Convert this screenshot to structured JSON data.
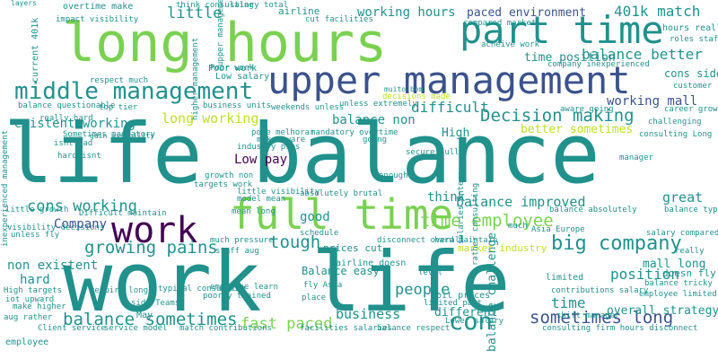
{
  "background": "#ffffff",
  "palette": {
    "teal": "#21918c",
    "green": "#7ad151",
    "navy": "#3b528b",
    "purple": "#440154",
    "blue": "#31688e",
    "sea": "#35b779",
    "lime": "#bddf26",
    "indigo": "#482878"
  },
  "words": [
    {
      "text": "life balance",
      "color": "teal"
    },
    {
      "text": "work life",
      "color": "teal"
    },
    {
      "text": "long hours",
      "color": "green"
    },
    {
      "text": "upper management",
      "color": "navy"
    },
    {
      "text": "part time",
      "color": "teal"
    },
    {
      "text": "full time",
      "color": "green"
    },
    {
      "text": "work",
      "color": "purple"
    },
    {
      "text": "middle management",
      "color": "teal"
    },
    {
      "text": "Decision making",
      "color": "teal"
    },
    {
      "text": "balance sometimes",
      "color": "teal"
    },
    {
      "text": "time employee",
      "color": "green"
    },
    {
      "text": "growing pains",
      "color": "teal"
    },
    {
      "text": "sometimes long",
      "color": "navy"
    },
    {
      "text": "big company",
      "color": "teal"
    },
    {
      "text": "cons working",
      "color": "teal"
    },
    {
      "text": "balance better",
      "color": "teal"
    },
    {
      "text": "working hours",
      "color": "teal"
    },
    {
      "text": "paced environment",
      "color": "navy"
    },
    {
      "text": "401k match",
      "color": "teal"
    },
    {
      "text": "existent working",
      "color": "teal"
    },
    {
      "text": "balance improved",
      "color": "teal"
    },
    {
      "text": "Low pay",
      "color": "purple"
    },
    {
      "text": "tough",
      "color": "teal"
    },
    {
      "text": "fast paced",
      "color": "green"
    },
    {
      "text": "business",
      "color": "teal"
    },
    {
      "text": "con",
      "color": "teal"
    },
    {
      "text": "position",
      "color": "teal"
    },
    {
      "text": "difficult",
      "color": "teal"
    },
    {
      "text": "long working",
      "color": "lime"
    },
    {
      "text": "working mall",
      "color": "navy"
    },
    {
      "text": "balance non",
      "color": "teal"
    },
    {
      "text": "Company",
      "color": "navy"
    },
    {
      "text": "balance challenge",
      "color": "teal"
    },
    {
      "text": "time position",
      "color": "teal"
    },
    {
      "text": "little",
      "color": "teal"
    },
    {
      "text": "non existent",
      "color": "teal"
    },
    {
      "text": "people",
      "color": "teal"
    },
    {
      "text": "good",
      "color": "teal"
    },
    {
      "text": "hard",
      "color": "teal"
    },
    {
      "text": "mall long",
      "color": "teal"
    },
    {
      "text": "overall strategy",
      "color": "teal"
    },
    {
      "text": "Balance easy",
      "color": "teal"
    },
    {
      "text": "cons side",
      "color": "teal"
    },
    {
      "text": "time",
      "color": "teal"
    },
    {
      "text": "different",
      "color": "teal"
    },
    {
      "text": "great",
      "color": "teal"
    },
    {
      "text": "think",
      "color": "teal"
    },
    {
      "text": "High",
      "color": "teal"
    },
    {
      "text": "better sometimes",
      "color": "lime"
    },
    {
      "text": "salary total",
      "color": "teal"
    },
    {
      "text": "airline",
      "color": "teal"
    },
    {
      "text": "Poor work",
      "color": "teal"
    },
    {
      "text": "overtime make",
      "color": "teal"
    },
    {
      "text": "cut facilities",
      "color": "teal"
    },
    {
      "text": "hours really",
      "color": "teal"
    },
    {
      "text": "roles staff",
      "color": "teal"
    },
    {
      "text": "compared market",
      "color": "teal"
    },
    {
      "text": "Low salary",
      "color": "teal"
    },
    {
      "text": "Sometimes mandatory",
      "color": "teal"
    },
    {
      "text": "mandatory overtime",
      "color": "teal"
    },
    {
      "text": "balance questionable",
      "color": "teal"
    },
    {
      "text": "aware going",
      "color": "teal"
    },
    {
      "text": "decisions made",
      "color": "lime"
    },
    {
      "text": "challenging",
      "color": "teal"
    },
    {
      "text": "respect much",
      "color": "teal"
    },
    {
      "text": "top tier",
      "color": "teal"
    },
    {
      "text": "much pressure",
      "color": "teal"
    },
    {
      "text": "staff aug",
      "color": "teal"
    },
    {
      "text": "require long",
      "color": "teal"
    },
    {
      "text": "typical consulting",
      "color": "teal"
    },
    {
      "text": "side Teams",
      "color": "teal"
    },
    {
      "text": "employee learn",
      "color": "teal"
    },
    {
      "text": "Client service",
      "color": "teal"
    },
    {
      "text": "service model",
      "color": "teal"
    },
    {
      "text": "match contributions",
      "color": "teal"
    },
    {
      "text": "facilities salaries",
      "color": "teal"
    },
    {
      "text": "balance respect",
      "color": "teal"
    },
    {
      "text": "consulting firm hours disconnect",
      "color": "teal"
    },
    {
      "text": "Lower salary",
      "color": "teal"
    },
    {
      "text": "unless fly",
      "color": "teal"
    },
    {
      "text": "High targets",
      "color": "teal"
    },
    {
      "text": "Difficult maintain",
      "color": "teal"
    },
    {
      "text": "Asia Europe",
      "color": "teal"
    },
    {
      "text": "salary compared",
      "color": "teal"
    },
    {
      "text": "doesn fly",
      "color": "teal"
    },
    {
      "text": "balance tricky",
      "color": "teal"
    },
    {
      "text": "employee limited",
      "color": "teal"
    },
    {
      "text": "make higher",
      "color": "teal"
    },
    {
      "text": "aug rather",
      "color": "teal"
    },
    {
      "text": "limited part",
      "color": "teal"
    },
    {
      "text": "oil prices",
      "color": "teal"
    },
    {
      "text": "airline doesn",
      "color": "teal"
    },
    {
      "text": "fly Asia",
      "color": "teal"
    },
    {
      "text": "place",
      "color": "teal"
    },
    {
      "text": "poorly trained",
      "color": "teal"
    },
    {
      "text": "May",
      "color": "teal"
    },
    {
      "text": "employee",
      "color": "teal"
    },
    {
      "text": "manager",
      "color": "teal"
    },
    {
      "text": "schedule",
      "color": "teal"
    },
    {
      "text": "contributions salary",
      "color": "teal"
    },
    {
      "text": "mean long",
      "color": "teal"
    },
    {
      "text": "model mean",
      "color": "teal"
    },
    {
      "text": "absolutely brutal",
      "color": "teal"
    },
    {
      "text": "growth non",
      "color": "teal"
    },
    {
      "text": "industry pros",
      "color": "teal"
    },
    {
      "text": "isnt bad",
      "color": "teal"
    },
    {
      "text": "really hard",
      "color": "teal"
    },
    {
      "text": "hard isnt",
      "color": "teal"
    },
    {
      "text": "make aware",
      "color": "teal"
    },
    {
      "text": "little visibility",
      "color": "teal"
    },
    {
      "text": "balance absolutely",
      "color": "teal"
    },
    {
      "text": "consulting Long",
      "color": "teal"
    },
    {
      "text": "shift manager",
      "color": "teal"
    },
    {
      "text": "limited",
      "color": "teal"
    },
    {
      "text": "disconnect overall",
      "color": "teal"
    },
    {
      "text": "hard maintain",
      "color": "teal"
    },
    {
      "text": "market industry",
      "color": "lime"
    },
    {
      "text": "prices cut",
      "color": "teal"
    },
    {
      "text": "Poor work",
      "color": "teal"
    },
    {
      "text": "weekends unless",
      "color": "teal"
    },
    {
      "text": "business units",
      "color": "teal"
    },
    {
      "text": "unless extremely",
      "color": "teal"
    },
    {
      "text": "think consulting",
      "color": "teal"
    },
    {
      "text": "company inexperienced",
      "color": "teal"
    },
    {
      "text": "inexperienced management",
      "color": "teal"
    },
    {
      "text": "acheive work",
      "color": "teal"
    },
    {
      "text": "little growth",
      "color": "teal"
    },
    {
      "text": "current 401k",
      "color": "teal"
    },
    {
      "text": "impact visibility",
      "color": "teal"
    },
    {
      "text": "layers",
      "color": "teal"
    },
    {
      "text": "iot upward",
      "color": "teal"
    },
    {
      "text": "targets work",
      "color": "teal"
    },
    {
      "text": "secure full",
      "color": "teal"
    },
    {
      "text": "salaries intern",
      "color": "teal"
    },
    {
      "text": "rather consulting",
      "color": "teal"
    },
    {
      "text": "balance typical",
      "color": "teal"
    },
    {
      "text": "career growth",
      "color": "teal"
    },
    {
      "text": "customer",
      "color": "teal"
    },
    {
      "text": "really",
      "color": "teal"
    },
    {
      "text": "higher management",
      "color": "teal"
    },
    {
      "text": "pode melhorar",
      "color": "teal"
    },
    {
      "text": "muito bom",
      "color": "teal"
    },
    {
      "text": "visibility decisions",
      "color": "teal"
    },
    {
      "text": "gain visibility",
      "color": "teal"
    },
    {
      "text": "upper management",
      "color": "teal"
    },
    {
      "text": "level",
      "color": "teal"
    },
    {
      "text": "much",
      "color": "teal"
    },
    {
      "text": "going",
      "color": "teal"
    },
    {
      "text": "enough",
      "color": "teal"
    }
  ]
}
